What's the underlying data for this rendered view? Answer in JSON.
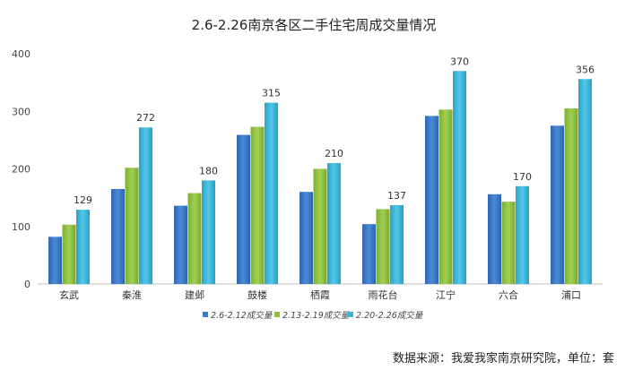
{
  "chart_data": {
    "type": "bar",
    "title": "2.6-2.26南京各区二手住宅周成交量情况",
    "categories": [
      "玄武",
      "秦淮",
      "建邺",
      "鼓楼",
      "栖霞",
      "雨花台",
      "江宁",
      "六合",
      "浦口"
    ],
    "series": [
      {
        "name": "2.6-2.12成交量",
        "values": [
          82,
          165,
          136,
          259,
          160,
          104,
          292,
          156,
          275
        ]
      },
      {
        "name": "2.13-2.19成交量",
        "values": [
          103,
          202,
          158,
          273,
          200,
          130,
          303,
          143,
          305
        ]
      },
      {
        "name": "2.20-2.26成交量",
        "values": [
          129,
          272,
          180,
          315,
          210,
          137,
          370,
          170,
          356
        ]
      }
    ],
    "data_labels_series": 2,
    "ylim": [
      0,
      400
    ],
    "yticks": [
      0,
      100,
      200,
      300,
      400
    ],
    "grid": false,
    "legend_position": "bottom",
    "colors": [
      "#3a78c8",
      "#8dc03c",
      "#37b4d7"
    ]
  },
  "footer_text": "数据来源：我爱我家南京研究院，单位：套"
}
